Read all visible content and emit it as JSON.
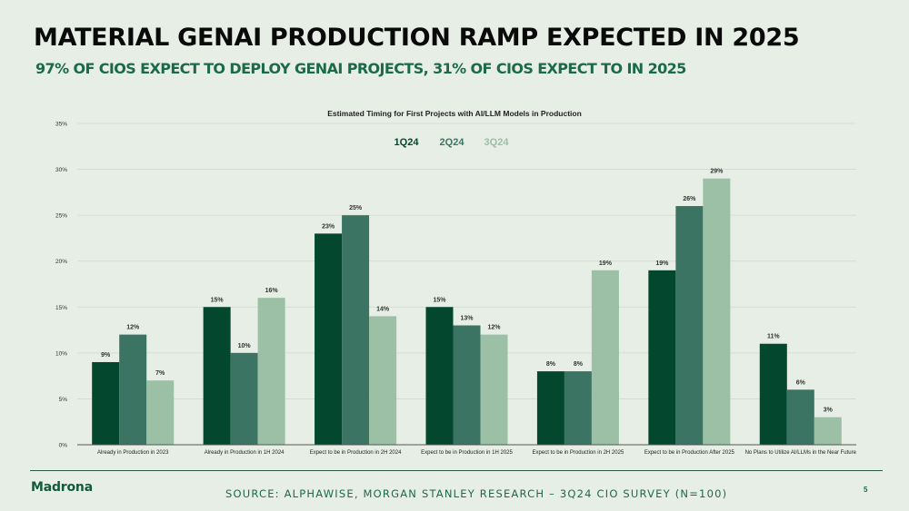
{
  "slide": {
    "title": "MATERIAL GENAI PRODUCTION RAMP EXPECTED IN 2025",
    "subtitle": "97% OF CIOS EXPECT TO DEPLOY GENAI PROJECTS, 31% OF CIOS EXPECT TO IN 2025",
    "logo": "Madrona",
    "source": "SOURCE: ALPHAWISE, MORGAN STANLEY RESEARCH – 3Q24 CIO SURVEY (N=100)",
    "page_number": "5"
  },
  "chart_data": {
    "type": "bar",
    "title": "Estimated Timing for First Projects with AI/LLM Models in Production",
    "xlabel": "",
    "ylabel": "",
    "ylim": [
      0,
      35
    ],
    "yticks": [
      0,
      5,
      10,
      15,
      20,
      25,
      30,
      35
    ],
    "ytick_labels": [
      "0%",
      "5%",
      "10%",
      "15%",
      "20%",
      "25%",
      "30%",
      "35%"
    ],
    "grid": true,
    "legend_position": "top-center",
    "categories": [
      "Already in Production in 2023",
      "Already in Production in 1H 2024",
      "Expect to be in Production in 2H 2024",
      "Expect to be in Production in 1H 2025",
      "Expect to be in Production in 2H 2025",
      "Expect to be in Production After 2025",
      "No Plans to Utilize AI/LLMs in the Near Future"
    ],
    "series": [
      {
        "name": "1Q24",
        "color": "#03472f",
        "values": [
          9,
          15,
          23,
          15,
          8,
          19,
          11
        ],
        "labels": [
          "9%",
          "15%",
          "23%",
          "15%",
          "8%",
          "19%",
          "11%"
        ]
      },
      {
        "name": "2Q24",
        "color": "#3c7463",
        "values": [
          12,
          10,
          25,
          13,
          8,
          26,
          6
        ],
        "labels": [
          "12%",
          "10%",
          "25%",
          "13%",
          "8%",
          "26%",
          "6%"
        ]
      },
      {
        "name": "3Q24",
        "color": "#9bc0a5",
        "values": [
          7,
          16,
          14,
          12,
          19,
          29,
          3
        ],
        "labels": [
          "7%",
          "16%",
          "14%",
          "12%",
          "19%",
          "29%",
          "3%"
        ]
      }
    ]
  }
}
